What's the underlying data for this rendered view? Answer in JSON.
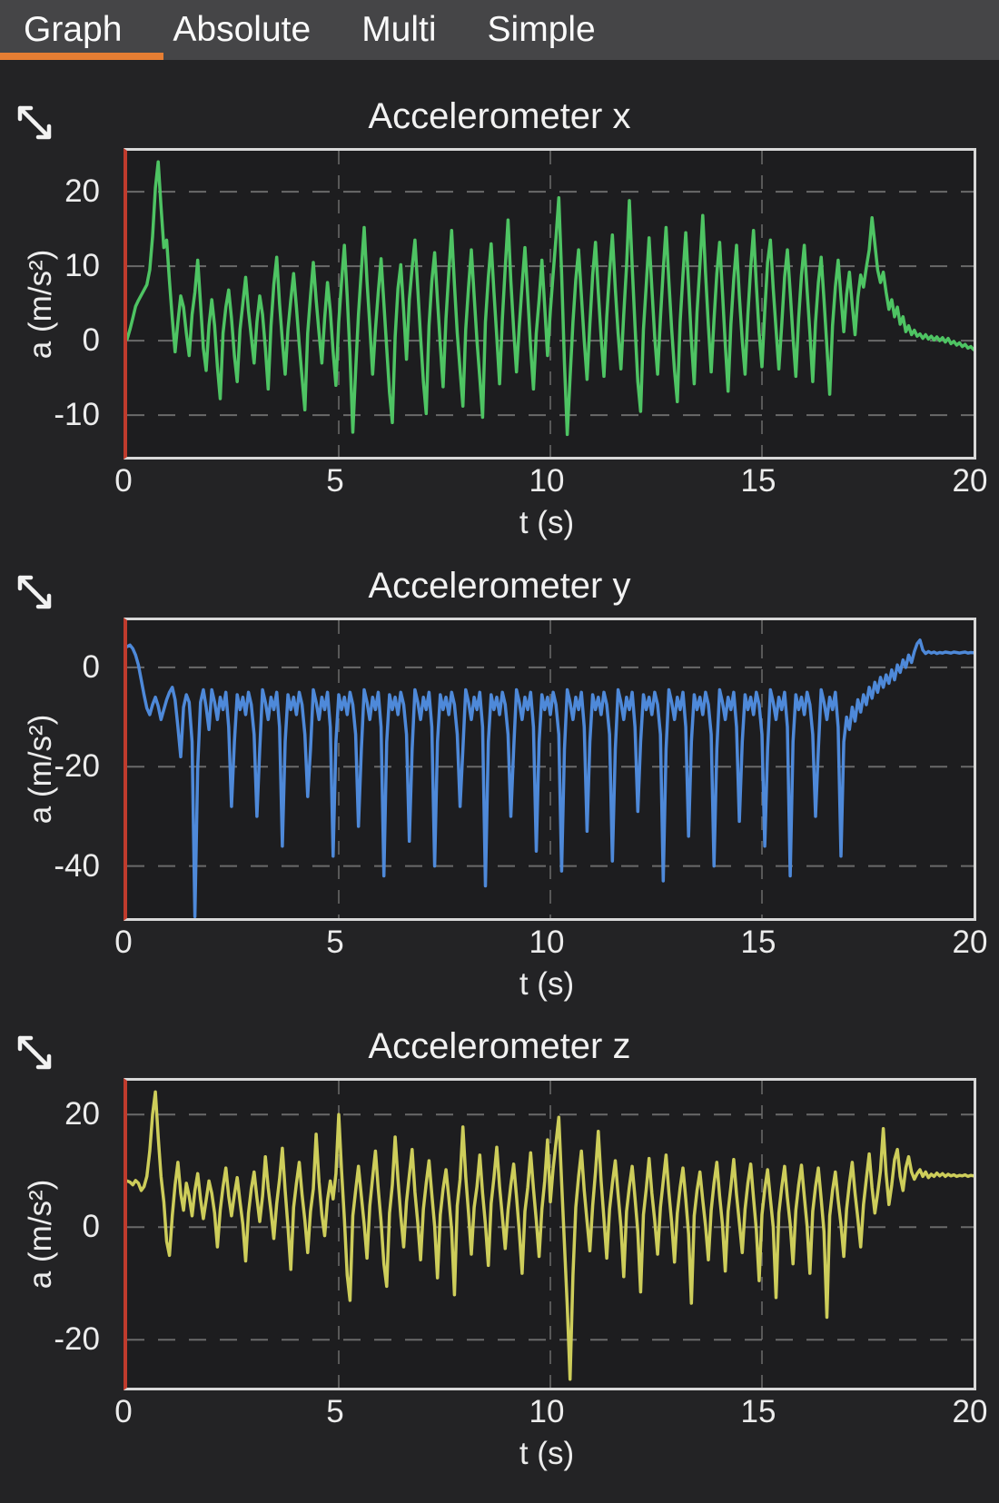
{
  "tabs": {
    "items": [
      {
        "label": "Graph",
        "active": true
      },
      {
        "label": "Absolute",
        "active": false
      },
      {
        "label": "Multi",
        "active": false
      },
      {
        "label": "Simple",
        "active": false
      }
    ]
  },
  "colors": {
    "accent_orange": "#e67e33",
    "tabbar_bg": "#454547",
    "page_bg": "#232325",
    "plot_bg": "#1d1d1f",
    "frame_border": "#d8d8d8",
    "frame_left_red": "#bf3b2d",
    "series_x": "#4ec463",
    "series_y": "#4e89d9",
    "series_z": "#cdcd5a"
  },
  "chart_data": [
    {
      "type": "line",
      "title": "Accelerometer x",
      "xlabel": "t (s)",
      "ylabel": "a (m/s²)",
      "color": "#4ec463",
      "icon": "expand-arrows-icon",
      "xlim": [
        0,
        20
      ],
      "xticks": [
        0,
        5,
        10,
        15,
        20
      ],
      "grid_x": [
        5,
        10,
        15
      ],
      "ylim": [
        -15.6,
        25.5
      ],
      "yticks": [
        20,
        10,
        0,
        -10
      ],
      "t_start": 0,
      "t_end": 20,
      "values": [
        0.2,
        1.5,
        3.0,
        4.6,
        5.4,
        6.1,
        6.8,
        7.5,
        9.5,
        14.0,
        20.5,
        24.0,
        18.0,
        12.5,
        13.5,
        8.0,
        3.0,
        -1.5,
        2.5,
        6.0,
        4.5,
        1.0,
        -2.0,
        3.5,
        6.5,
        10.8,
        5.0,
        -1.0,
        -4.0,
        2.0,
        5.5,
        2.0,
        -3.5,
        -7.8,
        1.0,
        4.5,
        6.8,
        3.0,
        -2.0,
        -5.5,
        1.5,
        5.0,
        8.5,
        4.0,
        0.5,
        -3.0,
        2.5,
        6.0,
        3.5,
        -1.0,
        -6.5,
        2.0,
        7.5,
        11.2,
        5.0,
        0.0,
        -4.5,
        1.5,
        5.5,
        9.0,
        4.5,
        -0.5,
        -5.0,
        -9.3,
        1.0,
        6.0,
        10.5,
        5.5,
        1.0,
        -3.0,
        3.0,
        7.8,
        4.0,
        -1.5,
        -6.0,
        2.5,
        8.0,
        12.8,
        6.0,
        -2.0,
        -12.3,
        -4.0,
        3.5,
        9.5,
        15.2,
        8.0,
        2.0,
        -4.5,
        1.5,
        6.5,
        11.0,
        5.0,
        -1.0,
        -7.0,
        -11.0,
        0.5,
        7.0,
        10.2,
        4.0,
        -2.5,
        5.5,
        9.8,
        13.5,
        7.0,
        0.5,
        -5.5,
        -9.8,
        2.0,
        8.0,
        11.8,
        5.5,
        -0.5,
        -6.2,
        3.0,
        9.2,
        14.8,
        7.5,
        1.0,
        -4.0,
        -8.8,
        1.5,
        7.2,
        12.2,
        6.0,
        0.0,
        -5.0,
        -10.3,
        2.5,
        8.5,
        13.0,
        6.5,
        0.5,
        -5.8,
        3.0,
        9.8,
        16.2,
        8.0,
        1.5,
        -4.2,
        2.0,
        7.5,
        12.5,
        6.0,
        -1.0,
        -6.5,
        1.0,
        5.5,
        10.8,
        4.5,
        -2.0,
        4.0,
        9.0,
        13.8,
        19.2,
        9.0,
        -3.0,
        -12.6,
        -5.0,
        2.5,
        8.2,
        12.2,
        6.0,
        0.0,
        -5.2,
        2.2,
        8.8,
        13.2,
        6.5,
        0.5,
        -4.8,
        3.2,
        9.2,
        14.2,
        7.0,
        1.0,
        -3.8,
        3.5,
        10.0,
        18.8,
        10.0,
        2.0,
        -5.5,
        -9.5,
        1.5,
        7.5,
        13.8,
        7.0,
        0.5,
        -4.5,
        3.0,
        9.5,
        15.2,
        8.0,
        1.5,
        -4.0,
        -8.2,
        2.5,
        8.8,
        14.5,
        7.5,
        0.0,
        -5.8,
        3.8,
        10.2,
        16.8,
        9.0,
        2.0,
        -4.2,
        2.8,
        9.0,
        13.2,
        6.5,
        -0.5,
        -6.8,
        2.2,
        8.2,
        12.8,
        6.0,
        0.0,
        -4.5,
        3.5,
        9.8,
        14.8,
        7.5,
        1.0,
        -3.5,
        4.0,
        10.5,
        13.5,
        7.0,
        1.5,
        -3.8,
        2.0,
        8.5,
        12.2,
        6.5,
        0.5,
        -4.8,
        3.0,
        8.8,
        12.8,
        6.8,
        1.0,
        -5.5,
        2.5,
        7.8,
        11.2,
        5.5,
        -0.8,
        -7.2,
        2.0,
        7.2,
        10.8,
        5.8,
        1.2,
        6.2,
        9.2,
        4.8,
        0.8,
        5.8,
        8.8,
        7.2,
        9.8,
        12.2,
        16.5,
        13.0,
        9.5,
        7.8,
        9.2,
        6.5,
        4.2,
        5.5,
        3.2,
        4.5,
        2.2,
        3.2,
        1.2,
        2.0,
        0.8,
        1.4,
        0.6,
        0.9,
        0.3,
        0.8,
        0.2,
        0.6,
        0.1,
        0.5,
        0.0,
        0.4,
        -0.2,
        0.3,
        -0.4,
        -0.1,
        -0.6,
        -0.3,
        -0.8,
        -0.5,
        -1.0,
        -0.8,
        -1.2
      ]
    },
    {
      "type": "line",
      "title": "Accelerometer y",
      "xlabel": "t (s)",
      "ylabel": "a (m/s²)",
      "color": "#4e89d9",
      "icon": "expand-arrows-icon",
      "xlim": [
        0,
        20
      ],
      "xticks": [
        0,
        5,
        10,
        15,
        20
      ],
      "grid_x": [
        5,
        10,
        15
      ],
      "ylim": [
        -50.5,
        9.5
      ],
      "yticks": [
        0,
        -20,
        -40
      ],
      "t_start": 0,
      "t_end": 20,
      "values": [
        4.2,
        4.5,
        3.8,
        2.5,
        0.5,
        -2.5,
        -5.5,
        -8.2,
        -9.5,
        -7.5,
        -6.0,
        -7.8,
        -10.5,
        -8.5,
        -6.5,
        -5.0,
        -4.0,
        -6.5,
        -12.0,
        -18.0,
        -8.0,
        -5.5,
        -7.0,
        -15.0,
        -50.2,
        -20.0,
        -7.0,
        -4.5,
        -8.0,
        -12.5,
        -4.5,
        -7.0,
        -10.5,
        -6.0,
        -8.5,
        -5.0,
        -12.0,
        -28.0,
        -15.0,
        -5.5,
        -8.5,
        -6.0,
        -9.5,
        -5.0,
        -7.5,
        -13.5,
        -30.0,
        -16.5,
        -4.5,
        -7.0,
        -10.5,
        -6.0,
        -8.5,
        -5.0,
        -12.0,
        -36.0,
        -15.0,
        -5.5,
        -8.5,
        -6.0,
        -9.5,
        -5.0,
        -7.5,
        -13.5,
        -26.0,
        -16.5,
        -4.5,
        -7.0,
        -10.5,
        -6.0,
        -8.5,
        -5.0,
        -12.0,
        -38.0,
        -15.0,
        -5.5,
        -8.5,
        -6.0,
        -9.5,
        -5.0,
        -7.5,
        -13.5,
        -32.0,
        -16.5,
        -4.5,
        -7.0,
        -10.5,
        -6.0,
        -8.5,
        -5.0,
        -12.0,
        -42.0,
        -15.0,
        -5.5,
        -8.5,
        -6.0,
        -9.5,
        -5.0,
        -7.5,
        -13.5,
        -35.0,
        -16.5,
        -4.5,
        -7.0,
        -10.5,
        -6.0,
        -8.5,
        -5.0,
        -12.0,
        -40.0,
        -15.0,
        -5.5,
        -8.5,
        -6.0,
        -9.5,
        -5.0,
        -7.5,
        -13.5,
        -28.0,
        -16.5,
        -4.5,
        -7.0,
        -10.5,
        -6.0,
        -8.5,
        -5.0,
        -12.0,
        -44.0,
        -15.0,
        -5.5,
        -8.5,
        -6.0,
        -9.5,
        -5.0,
        -7.5,
        -13.5,
        -30.0,
        -16.5,
        -4.5,
        -7.0,
        -10.5,
        -6.0,
        -8.5,
        -5.0,
        -12.0,
        -37.0,
        -15.0,
        -5.5,
        -8.5,
        -6.0,
        -9.5,
        -5.0,
        -7.5,
        -13.5,
        -41.0,
        -16.5,
        -4.5,
        -7.0,
        -10.5,
        -6.0,
        -8.5,
        -5.0,
        -12.0,
        -33.0,
        -15.0,
        -5.5,
        -8.5,
        -6.0,
        -9.5,
        -5.0,
        -7.5,
        -13.5,
        -39.0,
        -16.5,
        -4.5,
        -7.0,
        -10.5,
        -6.0,
        -8.5,
        -5.0,
        -12.0,
        -29.0,
        -15.0,
        -5.5,
        -8.5,
        -6.0,
        -9.5,
        -5.0,
        -7.5,
        -13.5,
        -43.0,
        -16.5,
        -4.5,
        -7.0,
        -10.5,
        -6.0,
        -8.5,
        -5.0,
        -12.0,
        -34.0,
        -15.0,
        -5.5,
        -8.5,
        -6.0,
        -9.5,
        -5.0,
        -7.5,
        -13.5,
        -40.0,
        -16.5,
        -4.5,
        -7.0,
        -10.5,
        -6.0,
        -8.5,
        -5.0,
        -12.0,
        -31.0,
        -15.0,
        -5.5,
        -8.5,
        -6.0,
        -9.5,
        -5.0,
        -7.5,
        -13.5,
        -36.0,
        -16.5,
        -4.5,
        -7.0,
        -10.5,
        -6.0,
        -8.5,
        -5.0,
        -12.0,
        -42.0,
        -15.0,
        -5.5,
        -8.5,
        -6.0,
        -9.5,
        -5.0,
        -7.5,
        -13.5,
        -30.0,
        -16.5,
        -4.5,
        -7.0,
        -10.5,
        -6.0,
        -8.5,
        -5.0,
        -12.0,
        -38.0,
        -15.0,
        -10.0,
        -12.5,
        -8.0,
        -10.8,
        -6.5,
        -9.0,
        -5.5,
        -7.5,
        -4.0,
        -6.2,
        -3.0,
        -5.0,
        -2.0,
        -4.0,
        -1.5,
        -3.2,
        -0.5,
        -2.5,
        0.5,
        -1.0,
        1.5,
        0.0,
        2.5,
        1.0,
        3.2,
        4.8,
        5.5,
        3.5,
        2.8,
        3.2,
        2.9,
        3.1,
        2.8,
        3.0,
        2.9,
        3.1,
        3.0,
        2.9,
        3.1,
        3.0,
        2.9,
        3.0,
        3.1,
        2.9,
        3.0,
        2.95
      ]
    },
    {
      "type": "line",
      "title": "Accelerometer z",
      "xlabel": "t (s)",
      "ylabel": "a (m/s²)",
      "color": "#cdcd5a",
      "icon": "expand-arrows-icon",
      "xlim": [
        0,
        20
      ],
      "xticks": [
        0,
        5,
        10,
        15,
        20
      ],
      "grid_x": [
        5,
        10,
        15
      ],
      "ylim": [
        -28.5,
        26
      ],
      "yticks": [
        20,
        0,
        -20
      ],
      "t_start": 0,
      "t_end": 20,
      "values": [
        8.2,
        8.0,
        7.5,
        8.3,
        7.8,
        6.5,
        7.2,
        9.0,
        13.5,
        20.0,
        24.0,
        16.0,
        9.0,
        4.5,
        -2.5,
        -5.0,
        2.0,
        7.5,
        11.5,
        6.0,
        3.0,
        7.8,
        5.5,
        2.0,
        6.5,
        9.5,
        5.0,
        1.5,
        4.8,
        8.2,
        6.0,
        2.5,
        -3.5,
        3.0,
        7.2,
        10.5,
        5.5,
        2.0,
        5.8,
        8.8,
        4.5,
        0.5,
        -6.0,
        2.5,
        6.8,
        9.8,
        5.2,
        1.0,
        5.5,
        12.5,
        7.0,
        2.8,
        -2.0,
        4.2,
        8.5,
        14.0,
        6.5,
        0.0,
        -7.5,
        3.5,
        7.8,
        11.5,
        5.8,
        1.2,
        -4.5,
        2.8,
        6.8,
        16.5,
        8.0,
        2.2,
        -1.5,
        4.8,
        8.2,
        5.0,
        9.5,
        20.0,
        10.0,
        1.5,
        -8.5,
        -13.0,
        2.0,
        6.5,
        10.8,
        5.5,
        0.5,
        -5.5,
        3.8,
        8.8,
        13.5,
        6.8,
        1.0,
        -6.5,
        -10.5,
        2.5,
        7.5,
        16.0,
        8.5,
        2.0,
        -3.5,
        4.5,
        9.2,
        13.8,
        6.2,
        0.8,
        -5.8,
        3.2,
        7.8,
        11.8,
        5.8,
        0.2,
        -9.0,
        2.2,
        6.8,
        10.2,
        5.2,
        -0.5,
        -12.0,
        3.8,
        8.5,
        17.8,
        9.0,
        2.5,
        -4.8,
        3.5,
        7.2,
        12.8,
        6.0,
        0.5,
        -6.8,
        4.2,
        8.8,
        14.2,
        7.2,
        1.8,
        -3.8,
        3.0,
        7.5,
        11.2,
        5.5,
        -0.8,
        -8.2,
        2.8,
        7.0,
        13.2,
        6.8,
        1.2,
        -5.2,
        3.2,
        8.2,
        15.5,
        4.5,
        10.5,
        15.0,
        19.5,
        8.0,
        -3.0,
        -14.0,
        -27.0,
        -8.5,
        3.5,
        9.0,
        13.5,
        6.5,
        1.0,
        -4.2,
        3.8,
        9.8,
        17.0,
        8.2,
        1.5,
        -5.5,
        3.2,
        7.8,
        11.8,
        5.8,
        0.2,
        -8.8,
        2.8,
        7.2,
        10.8,
        5.2,
        -0.8,
        -11.5,
        2.2,
        6.8,
        12.2,
        6.0,
        1.2,
        -4.8,
        3.5,
        8.2,
        12.8,
        6.2,
        0.8,
        -6.2,
        2.5,
        7.0,
        10.5,
        5.0,
        -1.2,
        -13.5,
        2.0,
        6.5,
        9.8,
        4.8,
        0.2,
        -5.8,
        3.0,
        7.8,
        11.5,
        5.5,
        0.5,
        -7.8,
        2.8,
        7.2,
        12.0,
        5.8,
        0.8,
        -4.5,
        3.2,
        7.8,
        11.2,
        5.2,
        -0.5,
        -9.5,
        2.2,
        6.8,
        10.2,
        5.0,
        0.0,
        -12.5,
        2.5,
        7.0,
        10.8,
        5.2,
        0.5,
        -6.5,
        3.0,
        7.5,
        11.0,
        5.5,
        0.2,
        -8.2,
        2.8,
        7.2,
        10.5,
        5.0,
        -0.8,
        -16.0,
        2.0,
        6.5,
        9.8,
        4.8,
        0.5,
        -5.2,
        3.2,
        7.8,
        11.5,
        6.0,
        1.5,
        -3.5,
        4.0,
        8.5,
        13.0,
        7.0,
        2.5,
        6.0,
        10.0,
        17.5,
        9.5,
        4.0,
        7.5,
        12.0,
        13.8,
        9.0,
        6.5,
        10.5,
        12.5,
        9.8,
        8.5,
        9.5,
        10.2,
        9.0,
        9.8,
        8.8,
        9.4,
        9.0,
        9.6,
        9.1,
        9.5,
        9.0,
        9.4,
        9.1,
        9.3,
        9.0,
        9.2,
        9.1,
        9.3,
        9.0,
        9.2,
        9.1
      ]
    }
  ]
}
